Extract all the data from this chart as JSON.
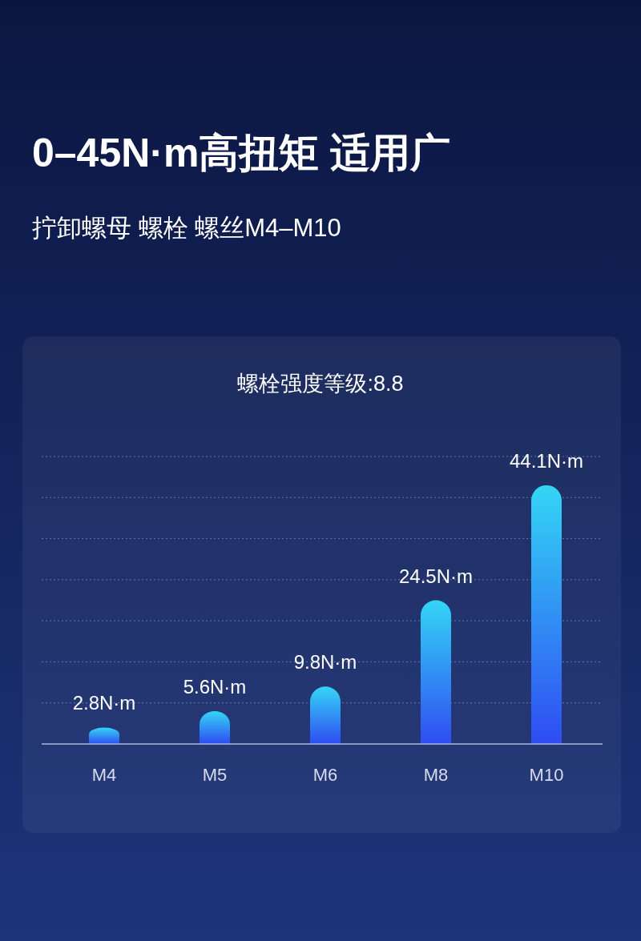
{
  "chart_data": {
    "type": "bar",
    "title": "螺栓强度等级:8.8",
    "annotations": [
      "0–45N·m高扭矩 适用广",
      "拧卸螺母 螺栓 螺丝M4–M10"
    ],
    "categories": [
      "M4",
      "M5",
      "M6",
      "M8",
      "M10"
    ],
    "values": [
      2.8,
      5.6,
      9.8,
      24.5,
      44.1
    ],
    "value_labels": [
      "2.8N·m",
      "5.6N·m",
      "9.8N·m",
      "24.5N·m",
      "44.1N·m"
    ],
    "color": "#34d6f5",
    "ylim": [
      0,
      49
    ],
    "yticks": [
      {
        "value": 0,
        "label": null
      },
      {
        "value": 7,
        "label": null
      },
      {
        "value": 14,
        "label": null
      },
      {
        "value": 21,
        "label": null
      },
      {
        "value": 28,
        "label": null
      },
      {
        "value": 35,
        "label": null
      },
      {
        "value": 42,
        "label": null
      },
      {
        "value": 49,
        "label": null
      }
    ],
    "grid": "y",
    "tick_labels": "x"
  }
}
